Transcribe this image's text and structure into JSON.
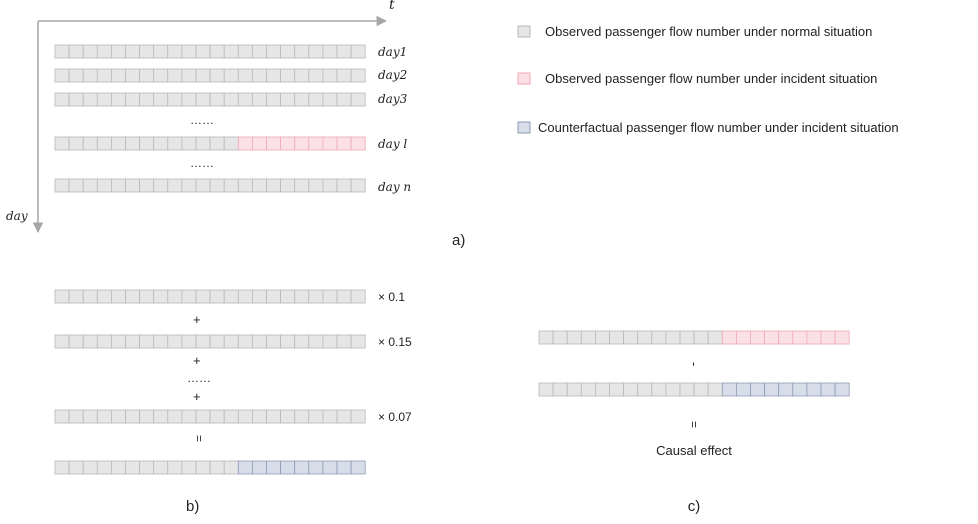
{
  "colors": {
    "normal_fill": "#e6e6e6",
    "normal_stroke": "#b8b8b8",
    "incident_fill": "#fbe0e5",
    "incident_stroke": "#f0a9b6",
    "counterfactual_fill": "#d7dde9",
    "counterfactual_stroke": "#8e9bb4",
    "axis": "#a6a6a6",
    "text": "#222222"
  },
  "legend": [
    {
      "kind": "normal",
      "label": "Observed passenger flow number under normal situation"
    },
    {
      "kind": "incident",
      "label": "Observed passenger flow number under incident situation"
    },
    {
      "kind": "counterfactual",
      "label": "Counterfactual passenger flow number under incident situation"
    }
  ],
  "panel_a": {
    "caption": "a)",
    "x_axis_label": "t",
    "y_axis_label": "day",
    "rows": [
      {
        "label": "day1",
        "incident_from": null
      },
      {
        "label": "day2",
        "incident_from": null
      },
      {
        "label": "day3",
        "incident_from": null
      },
      {
        "label": "day l",
        "incident_from": 13
      },
      {
        "label": "day n",
        "incident_from": null
      }
    ],
    "ellipses": [
      "……",
      "……"
    ]
  },
  "panel_b": {
    "caption": "b)",
    "weights": [
      "× 0.1",
      "× 0.15",
      "× 0.07"
    ],
    "plus": [
      "+",
      "+",
      "+"
    ],
    "ellipsis": "……",
    "equals": "="
  },
  "panel_c": {
    "caption": "c)",
    "minus": "-",
    "equals": "=",
    "result_label": "Causal effect"
  },
  "cells_per_row": 22
}
